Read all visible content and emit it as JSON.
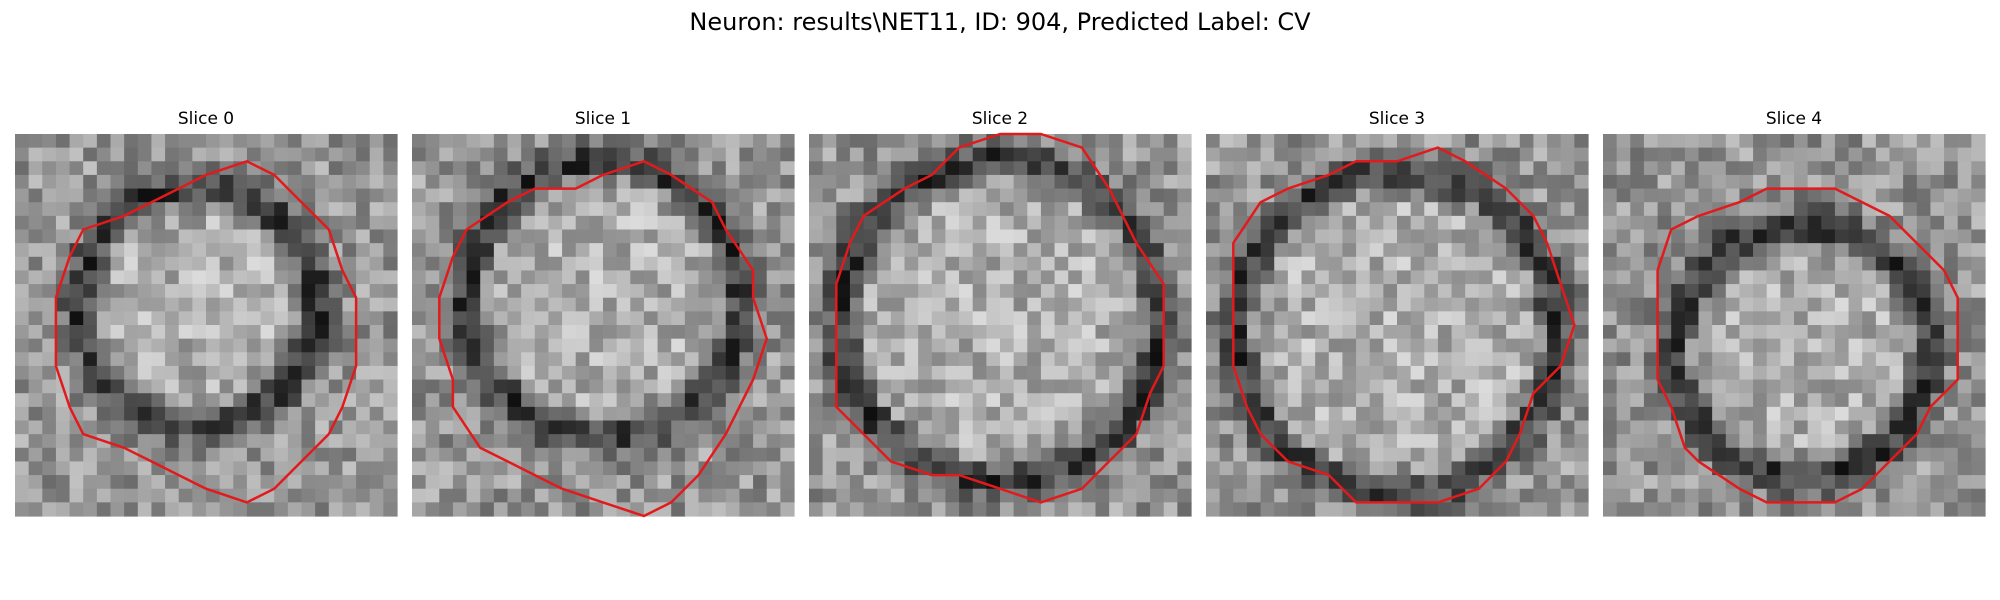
{
  "figure": {
    "title": "Neuron: results\\NET11, ID: 904, Predicted Label: CV",
    "contour_color": "#e31a1c"
  },
  "panels": [
    {
      "label": "Slice 0",
      "contour_cx": 0.51,
      "contour_cy": 0.52,
      "contour_r": 0.4,
      "ring_cx": 0.48,
      "ring_cy": 0.45,
      "ring_r": 0.31,
      "seed": 11
    },
    {
      "label": "Slice 1",
      "contour_cx": 0.5,
      "contour_cy": 0.53,
      "contour_r": 0.42,
      "ring_cx": 0.5,
      "ring_cy": 0.43,
      "ring_r": 0.36,
      "seed": 23
    },
    {
      "label": "Slice 2",
      "contour_cx": 0.5,
      "contour_cy": 0.49,
      "contour_r": 0.44,
      "ring_cx": 0.5,
      "ring_cy": 0.49,
      "ring_r": 0.42,
      "seed": 37
    },
    {
      "label": "Slice 3",
      "contour_cx": 0.5,
      "contour_cy": 0.5,
      "contour_r": 0.44,
      "ring_cx": 0.5,
      "ring_cy": 0.52,
      "ring_r": 0.42,
      "seed": 41
    },
    {
      "label": "Slice 4",
      "contour_cx": 0.52,
      "contour_cy": 0.54,
      "contour_r": 0.4,
      "ring_cx": 0.52,
      "ring_cy": 0.57,
      "ring_r": 0.33,
      "seed": 59
    }
  ]
}
